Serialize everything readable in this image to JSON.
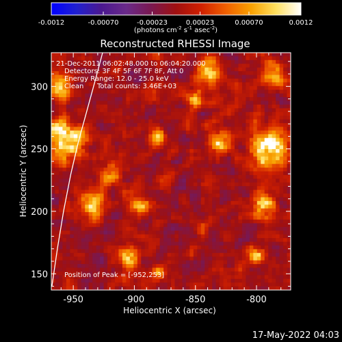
{
  "colorbar": {
    "ticks": [
      "-0.0012",
      "-0.00070",
      "-0.00023",
      "0.00023",
      "0.00070",
      "0.0012"
    ],
    "tick_values": [
      -0.0012,
      -0.0007,
      -0.00023,
      0.00023,
      0.0007,
      0.0012
    ],
    "range": [
      -0.0012,
      0.0012
    ],
    "label_main": "(photons cm",
    "label_exp1": "-2",
    "label_mid1": " s",
    "label_exp2": "-1",
    "label_mid2": " asec",
    "label_exp3": "-2",
    "label_end": ")",
    "colors": [
      "#0000ff",
      "#2020d0",
      "#4b1890",
      "#6a2a8a",
      "#7a1850",
      "#a01010",
      "#d02000",
      "#f06000",
      "#f8a000",
      "#ffe060",
      "#ffffff"
    ]
  },
  "chart_data": {
    "type": "heatmap",
    "title": "Reconstructed RHESSI Image",
    "xlabel": "Heliocentric X (arcsec)",
    "ylabel": "Heliocentric Y (arcsec)",
    "xlim": [
      -968,
      -772
    ],
    "ylim": [
      137,
      327
    ],
    "x_ticks": [
      -950,
      -900,
      -850,
      -800
    ],
    "x_tick_labels": [
      "-950",
      "-900",
      "-850",
      "-800"
    ],
    "y_ticks": [
      150,
      200,
      250,
      300
    ],
    "y_tick_labels": [
      "150",
      "200",
      "250",
      "300"
    ],
    "peak_position": [
      -952,
      253
    ],
    "limb_curve": [
      [
        -967.5,
        140
      ],
      [
        -963,
        170
      ],
      [
        -958,
        200
      ],
      [
        -952,
        230
      ],
      [
        -946,
        255
      ],
      [
        -939,
        280
      ],
      [
        -932,
        305
      ],
      [
        -926,
        327
      ]
    ],
    "hot_regions": [
      {
        "x": -957,
        "y": 258,
        "r": 16,
        "v": 0.0012
      },
      {
        "x": -960,
        "y": 300,
        "r": 9,
        "v": 0.0009
      },
      {
        "x": -935,
        "y": 205,
        "r": 10,
        "v": 0.0008
      },
      {
        "x": -920,
        "y": 230,
        "r": 8,
        "v": 0.0007
      },
      {
        "x": -895,
        "y": 205,
        "r": 8,
        "v": 0.0008
      },
      {
        "x": -880,
        "y": 260,
        "r": 7,
        "v": 0.0007
      },
      {
        "x": -850,
        "y": 290,
        "r": 7,
        "v": 0.0008
      },
      {
        "x": -840,
        "y": 312,
        "r": 10,
        "v": 0.0009
      },
      {
        "x": -830,
        "y": 255,
        "r": 8,
        "v": 0.0009
      },
      {
        "x": -790,
        "y": 250,
        "r": 16,
        "v": 0.0012
      },
      {
        "x": -795,
        "y": 205,
        "r": 10,
        "v": 0.0008
      },
      {
        "x": -800,
        "y": 165,
        "r": 7,
        "v": 0.0008
      },
      {
        "x": -785,
        "y": 310,
        "r": 9,
        "v": 0.0009
      },
      {
        "x": -905,
        "y": 165,
        "r": 9,
        "v": 0.0008
      },
      {
        "x": -880,
        "y": 150,
        "r": 6,
        "v": 0.0007
      },
      {
        "x": -845,
        "y": 185,
        "r": 6,
        "v": 0.0006
      }
    ],
    "info": {
      "time_range": "21-Dec-2011 06:02:48.000 to 06:04:20.000",
      "detectors": "Detectors: 3F 4F 5F 6F 7F 8F, Att 0",
      "energy": "Energy Range: 12.0 - 25.0 keV",
      "method": "Clean",
      "counts": "Total counts: 3.46E+03",
      "peak": "Position of Peak = [-952,253]"
    }
  },
  "footer": {
    "timestamp": "17-May-2022 04:03"
  }
}
